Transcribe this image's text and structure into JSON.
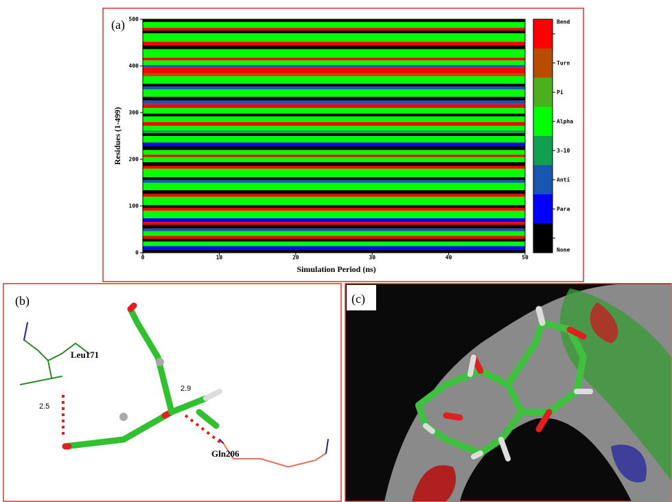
{
  "chart_data": {
    "type": "heatmap",
    "panel_label": "(a)",
    "xlabel": "Simulation Period (ns)",
    "ylabel": "Residues (1-499)",
    "xlim": [
      0,
      50
    ],
    "ylim": [
      0,
      500
    ],
    "xticks": [
      0,
      10,
      20,
      30,
      40,
      50
    ],
    "yticks": [
      0,
      100,
      200,
      300,
      400,
      500
    ],
    "states": [
      {
        "name": "Bend",
        "color": "#ff0000"
      },
      {
        "name": "Turn",
        "color": "#b84c00"
      },
      {
        "name": "Pi",
        "color": "#4cb01c"
      },
      {
        "name": "Alpha",
        "color": "#00ff00"
      },
      {
        "name": "3-10",
        "color": "#10a050"
      },
      {
        "name": "Anti",
        "color": "#1a55b0"
      },
      {
        "name": "Para",
        "color": "#0000ff"
      },
      {
        "name": "None",
        "color": "#000000"
      }
    ],
    "bands": [
      {
        "start": 0,
        "end": 6,
        "state": "None"
      },
      {
        "start": 6,
        "end": 14,
        "state": "Para"
      },
      {
        "start": 14,
        "end": 24,
        "state": "Alpha"
      },
      {
        "start": 24,
        "end": 30,
        "state": "None"
      },
      {
        "start": 30,
        "end": 36,
        "state": "Bend"
      },
      {
        "start": 36,
        "end": 46,
        "state": "Alpha"
      },
      {
        "start": 46,
        "end": 52,
        "state": "Anti"
      },
      {
        "start": 52,
        "end": 60,
        "state": "None"
      },
      {
        "start": 60,
        "end": 66,
        "state": "Bend"
      },
      {
        "start": 66,
        "end": 74,
        "state": "Para"
      },
      {
        "start": 74,
        "end": 90,
        "state": "Alpha"
      },
      {
        "start": 90,
        "end": 96,
        "state": "Bend"
      },
      {
        "start": 96,
        "end": 102,
        "state": "None"
      },
      {
        "start": 102,
        "end": 120,
        "state": "Alpha"
      },
      {
        "start": 120,
        "end": 126,
        "state": "Bend"
      },
      {
        "start": 126,
        "end": 134,
        "state": "None"
      },
      {
        "start": 134,
        "end": 150,
        "state": "Alpha"
      },
      {
        "start": 150,
        "end": 156,
        "state": "Anti"
      },
      {
        "start": 156,
        "end": 162,
        "state": "None"
      },
      {
        "start": 162,
        "end": 180,
        "state": "Alpha"
      },
      {
        "start": 180,
        "end": 186,
        "state": "Bend"
      },
      {
        "start": 186,
        "end": 194,
        "state": "None"
      },
      {
        "start": 194,
        "end": 205,
        "state": "Alpha"
      },
      {
        "start": 205,
        "end": 210,
        "state": "Bend"
      },
      {
        "start": 210,
        "end": 220,
        "state": "Alpha"
      },
      {
        "start": 220,
        "end": 228,
        "state": "None"
      },
      {
        "start": 228,
        "end": 236,
        "state": "Para"
      },
      {
        "start": 236,
        "end": 250,
        "state": "Alpha"
      },
      {
        "start": 250,
        "end": 256,
        "state": "None"
      },
      {
        "start": 256,
        "end": 262,
        "state": "3-10"
      },
      {
        "start": 262,
        "end": 272,
        "state": "Alpha"
      },
      {
        "start": 272,
        "end": 280,
        "state": "Bend"
      },
      {
        "start": 280,
        "end": 292,
        "state": "Alpha"
      },
      {
        "start": 292,
        "end": 298,
        "state": "None"
      },
      {
        "start": 298,
        "end": 310,
        "state": "Alpha"
      },
      {
        "start": 310,
        "end": 318,
        "state": "Bend"
      },
      {
        "start": 318,
        "end": 326,
        "state": "Anti"
      },
      {
        "start": 326,
        "end": 334,
        "state": "None"
      },
      {
        "start": 334,
        "end": 350,
        "state": "Alpha"
      },
      {
        "start": 350,
        "end": 356,
        "state": "Anti"
      },
      {
        "start": 356,
        "end": 362,
        "state": "None"
      },
      {
        "start": 362,
        "end": 378,
        "state": "Alpha"
      },
      {
        "start": 378,
        "end": 384,
        "state": "Turn"
      },
      {
        "start": 384,
        "end": 396,
        "state": "Bend"
      },
      {
        "start": 396,
        "end": 402,
        "state": "Anti"
      },
      {
        "start": 402,
        "end": 412,
        "state": "Alpha"
      },
      {
        "start": 412,
        "end": 418,
        "state": "Bend"
      },
      {
        "start": 418,
        "end": 436,
        "state": "Alpha"
      },
      {
        "start": 436,
        "end": 444,
        "state": "None"
      },
      {
        "start": 444,
        "end": 452,
        "state": "Bend"
      },
      {
        "start": 452,
        "end": 470,
        "state": "Alpha"
      },
      {
        "start": 470,
        "end": 476,
        "state": "None"
      },
      {
        "start": 476,
        "end": 482,
        "state": "Bend"
      },
      {
        "start": 482,
        "end": 494,
        "state": "Alpha"
      },
      {
        "start": 494,
        "end": 500,
        "state": "None"
      }
    ]
  },
  "panel_b": {
    "label": "(b)",
    "residue_1": "Leu171",
    "distance_1": "2.5",
    "distance_2": "2.9",
    "residue_2": "Gln206"
  },
  "panel_c": {
    "label": "(c)"
  }
}
